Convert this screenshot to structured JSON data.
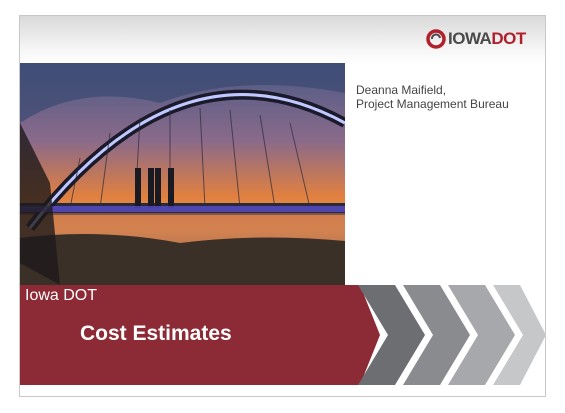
{
  "header": {
    "logo": {
      "name": "IOWA",
      "suffix": "DOT"
    }
  },
  "presenter": {
    "name": "Deanna Maifield,",
    "unit": "Project Management Bureau"
  },
  "title": {
    "org": "Iowa DOT",
    "heading": "Cost Estimates"
  }
}
